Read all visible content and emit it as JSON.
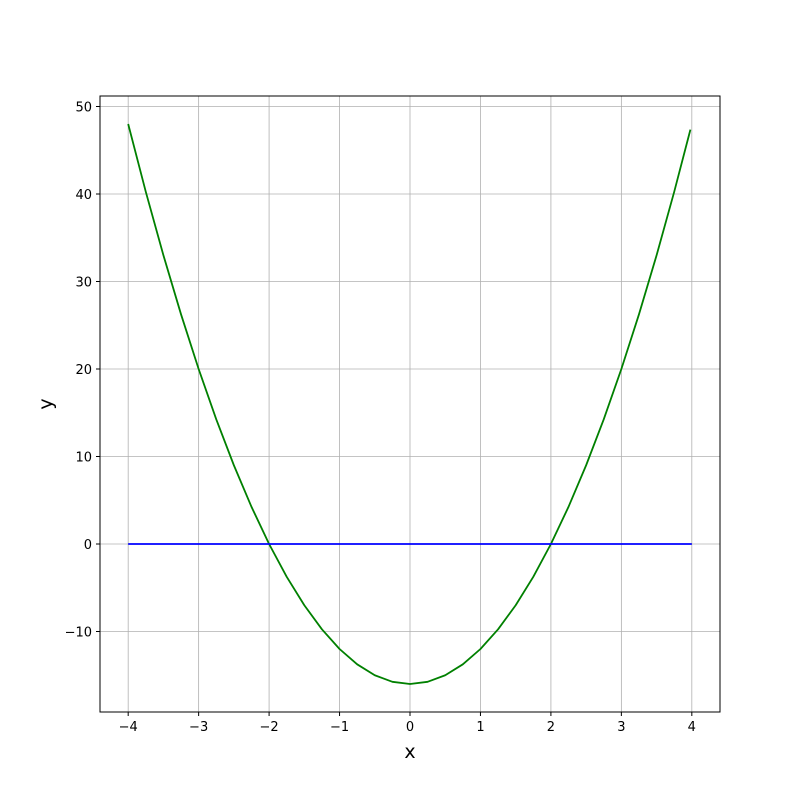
{
  "chart_data": {
    "type": "line",
    "title": "",
    "xlabel": "x",
    "ylabel": "y",
    "xlim": [
      -4.4,
      4.4
    ],
    "ylim": [
      -19.2,
      51.2
    ],
    "grid": true,
    "xticks": [
      -4,
      -3,
      -2,
      -1,
      0,
      1,
      2,
      3,
      4
    ],
    "xtick_labels": [
      "−4",
      "−3",
      "−2",
      "−1",
      "0",
      "1",
      "2",
      "3",
      "4"
    ],
    "yticks": [
      -10,
      0,
      10,
      20,
      30,
      40,
      50
    ],
    "ytick_labels": [
      "−10",
      "0",
      "10",
      "20",
      "30",
      "40",
      "50"
    ],
    "series": [
      {
        "color": "#008000",
        "x": [
          -4,
          -3.75,
          -3.5,
          -3.25,
          -3,
          -2.75,
          -2.5,
          -2.25,
          -2,
          -1.75,
          -1.5,
          -1.25,
          -1,
          -0.75,
          -0.5,
          -0.25,
          0,
          0.25,
          0.5,
          0.75,
          1,
          1.25,
          1.5,
          1.75,
          2,
          2.25,
          2.5,
          2.75,
          3,
          3.25,
          3.5,
          3.75,
          3.98
        ],
        "y": [
          48,
          40.25,
          33,
          26.25,
          20,
          14.25,
          9,
          4.25,
          0,
          -3.75,
          -7,
          -9.75,
          -12,
          -13.75,
          -15,
          -15.75,
          -16,
          -15.75,
          -15,
          -13.75,
          -12,
          -9.75,
          -7,
          -3.75,
          0,
          4.25,
          9,
          14.25,
          20,
          26.25,
          33,
          40.25,
          47.36
        ]
      },
      {
        "color": "#0000ff",
        "x": [
          -4,
          4
        ],
        "y": [
          0,
          0
        ]
      }
    ]
  }
}
